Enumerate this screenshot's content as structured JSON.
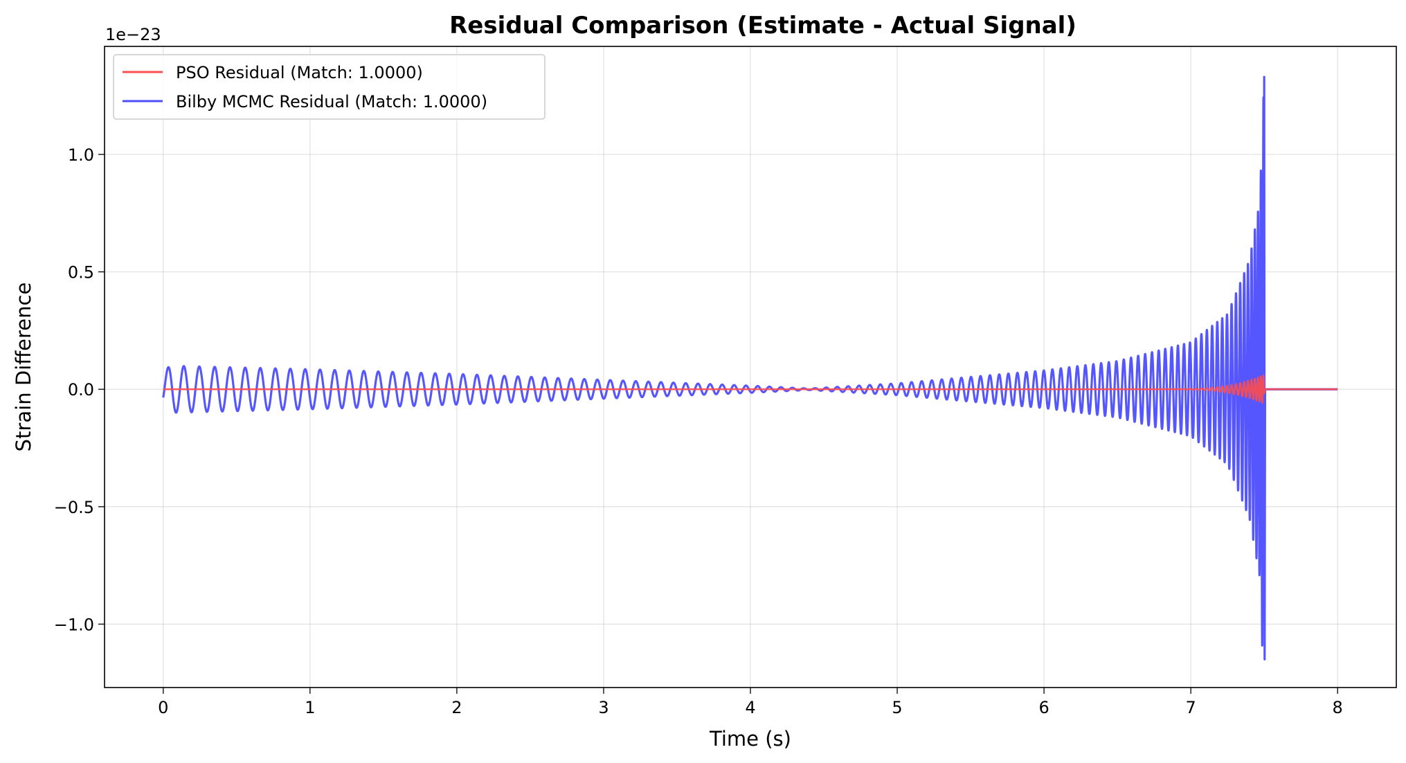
{
  "chart_data": {
    "type": "line",
    "title": "Residual Comparison (Estimate - Actual Signal)",
    "xlabel": "Time (s)",
    "ylabel": "Strain Difference",
    "y_offset_label": "1e−23",
    "xlim": [
      -0.4,
      8.4
    ],
    "ylim": [
      -1.27,
      1.46
    ],
    "x_ticks": [
      0,
      1,
      2,
      3,
      4,
      5,
      6,
      7,
      8
    ],
    "x_tick_labels": [
      "0",
      "1",
      "2",
      "3",
      "4",
      "5",
      "6",
      "7",
      "8"
    ],
    "y_ticks": [
      -1.0,
      -0.5,
      0.0,
      0.5,
      1.0
    ],
    "y_tick_labels": [
      "−1.0",
      "−0.5",
      "0.0",
      "0.5",
      "1.0"
    ],
    "grid": true,
    "legend_position": "top-left",
    "series": [
      {
        "name": "PSO Residual (Match: 1.0000)",
        "color": "#ff4d4d",
        "description_x_range": [
          0,
          8
        ],
        "peak_amplitude_at_merger": 0.06,
        "merger_time": 7.5
      },
      {
        "name": "Bilby MCMC Residual (Match: 1.0000)",
        "color": "#4d4dff",
        "envelope_points": [
          {
            "t": 0.0,
            "amp": 0.08
          },
          {
            "t": 0.05,
            "amp": 0.1
          },
          {
            "t": 1.0,
            "amp": 0.085
          },
          {
            "t": 2.0,
            "amp": 0.065
          },
          {
            "t": 3.0,
            "amp": 0.04
          },
          {
            "t": 4.0,
            "amp": 0.015
          },
          {
            "t": 4.4,
            "amp": 0.003
          },
          {
            "t": 5.0,
            "amp": 0.025
          },
          {
            "t": 6.0,
            "amp": 0.08
          },
          {
            "t": 6.5,
            "amp": 0.12
          },
          {
            "t": 7.0,
            "amp": 0.2
          },
          {
            "t": 7.25,
            "amp": 0.32
          },
          {
            "t": 7.4,
            "amp": 0.55
          },
          {
            "t": 7.47,
            "amp": 0.8
          },
          {
            "t": 7.5,
            "amp": 1.33
          }
        ],
        "merger_time": 7.5,
        "max_value": 1.33,
        "min_value": -1.15,
        "post_merger_value": 0.0
      }
    ]
  }
}
